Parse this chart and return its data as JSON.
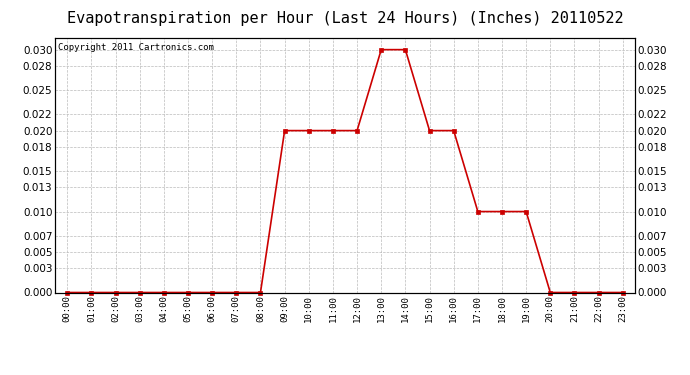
{
  "title": "Evapotranspiration per Hour (Last 24 Hours) (Inches) 20110522",
  "copyright": "Copyright 2011 Cartronics.com",
  "hours": [
    "00:00",
    "01:00",
    "02:00",
    "03:00",
    "04:00",
    "05:00",
    "06:00",
    "07:00",
    "08:00",
    "09:00",
    "10:00",
    "11:00",
    "12:00",
    "13:00",
    "14:00",
    "15:00",
    "16:00",
    "17:00",
    "18:00",
    "19:00",
    "20:00",
    "21:00",
    "22:00",
    "23:00"
  ],
  "values": [
    0.0,
    0.0,
    0.0,
    0.0,
    0.0,
    0.0,
    0.0,
    0.0,
    0.0,
    0.02,
    0.02,
    0.02,
    0.02,
    0.03,
    0.03,
    0.02,
    0.02,
    0.01,
    0.01,
    0.01,
    0.0,
    0.0,
    0.0,
    0.0
  ],
  "line_color": "#cc0000",
  "marker": "s",
  "marker_size": 2.5,
  "marker_color": "#cc0000",
  "background_color": "#ffffff",
  "plot_bg_color": "#ffffff",
  "grid_color": "#bbbbbb",
  "ylim": [
    0.0,
    0.0315
  ],
  "yticks": [
    0.0,
    0.003,
    0.005,
    0.007,
    0.01,
    0.013,
    0.015,
    0.018,
    0.02,
    0.022,
    0.025,
    0.028,
    0.03
  ],
  "title_fontsize": 11,
  "copyright_fontsize": 6.5,
  "tick_fontsize": 7.5,
  "xtick_fontsize": 6.5,
  "line_width": 1.2
}
